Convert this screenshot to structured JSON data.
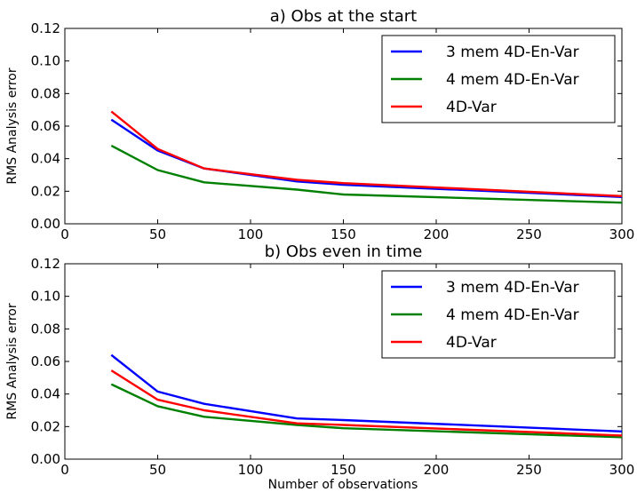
{
  "figure": {
    "xlabel": "Number of observations"
  },
  "chart_data": [
    {
      "type": "line",
      "title": "a) Obs at the start",
      "xlabel": "",
      "ylabel": "RMS Analysis error",
      "xlim": [
        0,
        300
      ],
      "ylim": [
        0.0,
        0.12
      ],
      "xticks": [
        "0",
        "50",
        "100",
        "150",
        "200",
        "250",
        "300"
      ],
      "yticks": [
        "0.00",
        "0.02",
        "0.04",
        "0.06",
        "0.08",
        "0.10",
        "0.12"
      ],
      "grid": false,
      "legend_position": "top-right",
      "x": [
        25,
        50,
        75,
        125,
        150,
        300
      ],
      "series": [
        {
          "name": "3 mem 4D-En-Var",
          "color": "#0000ff",
          "values": [
            0.064,
            0.045,
            0.034,
            0.026,
            0.024,
            0.0165
          ]
        },
        {
          "name": "4 mem 4D-En-Var",
          "color": "#008000",
          "values": [
            0.048,
            0.033,
            0.0255,
            0.021,
            0.018,
            0.013
          ]
        },
        {
          "name": "4D-Var",
          "color": "#ff0000",
          "values": [
            0.069,
            0.046,
            0.034,
            0.027,
            0.025,
            0.017
          ]
        }
      ]
    },
    {
      "type": "line",
      "title": "b) Obs even in time",
      "xlabel": "Number of observations",
      "ylabel": "RMS Analysis error",
      "xlim": [
        0,
        300
      ],
      "ylim": [
        0.0,
        0.12
      ],
      "xticks": [
        "0",
        "50",
        "100",
        "150",
        "200",
        "250",
        "300"
      ],
      "yticks": [
        "0.00",
        "0.02",
        "0.04",
        "0.06",
        "0.08",
        "0.10",
        "0.12"
      ],
      "grid": false,
      "legend_position": "top-right",
      "x": [
        25,
        50,
        75,
        125,
        150,
        300
      ],
      "series": [
        {
          "name": "3 mem 4D-En-Var",
          "color": "#0000ff",
          "values": [
            0.064,
            0.0415,
            0.034,
            0.025,
            0.024,
            0.017
          ]
        },
        {
          "name": "4 mem 4D-En-Var",
          "color": "#008000",
          "values": [
            0.046,
            0.0325,
            0.026,
            0.021,
            0.019,
            0.0135
          ]
        },
        {
          "name": "4D-Var",
          "color": "#ff0000",
          "values": [
            0.0545,
            0.0365,
            0.03,
            0.022,
            0.021,
            0.0145
          ]
        }
      ]
    }
  ]
}
